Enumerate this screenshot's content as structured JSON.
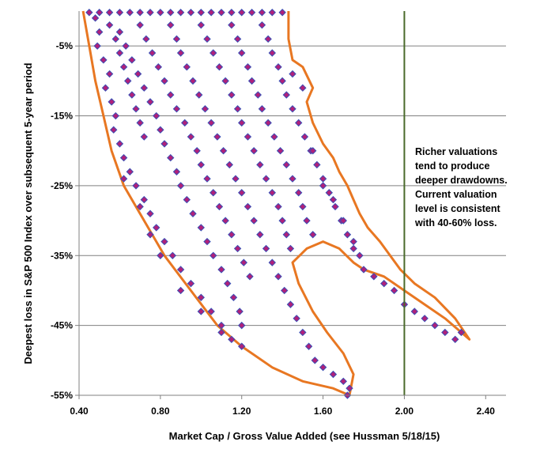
{
  "chart_data": {
    "type": "scatter",
    "xlabel": "Market Cap / Gross Value Added  (see Hussman 5/18/15)",
    "ylabel": "Deepest loss in S&P 500 Index over subsequent 5-year period",
    "xlim": [
      0.4,
      2.5
    ],
    "ylim": [
      -55,
      0
    ],
    "x_ticks": [
      "0.40",
      "0.80",
      "1.20",
      "1.60",
      "2.00",
      "2.40"
    ],
    "x_tick_values": [
      0.4,
      0.8,
      1.2,
      1.6,
      2.0,
      2.4
    ],
    "y_ticks": [
      "-5%",
      "-15%",
      "-25%",
      "-35%",
      "-45%",
      "-55%"
    ],
    "y_tick_values": [
      -5,
      -15,
      -25,
      -35,
      -45,
      -55
    ],
    "grid": "horizontal",
    "current_valuation_line": 2.0,
    "annotation": [
      "Richer valuations",
      "tend to produce",
      "deeper drawdowns.",
      "Current valuation",
      "level is consistent",
      "with 40-60% loss."
    ],
    "colors": {
      "marker_fill": "#b0207a",
      "marker_edge": "#3a4fb5",
      "envelope": "#e87722",
      "current_line": "#4a6a2a",
      "grid": "#808080"
    },
    "marker_shape": "diamond",
    "series": [
      {
        "values": [
          [
            0.45,
            -0.2
          ],
          [
            0.48,
            -1
          ],
          [
            0.5,
            -3
          ],
          [
            0.49,
            -5
          ],
          [
            0.52,
            -7
          ],
          [
            0.55,
            -9
          ],
          [
            0.53,
            -11
          ],
          [
            0.56,
            -13
          ],
          [
            0.58,
            -15
          ],
          [
            0.57,
            -17
          ],
          [
            0.6,
            -19
          ],
          [
            0.62,
            -21
          ],
          [
            0.65,
            -23
          ],
          [
            0.68,
            -25
          ],
          [
            0.72,
            -27
          ],
          [
            0.75,
            -29
          ],
          [
            0.78,
            -31
          ],
          [
            0.82,
            -33
          ],
          [
            0.86,
            -35
          ],
          [
            0.9,
            -37
          ],
          [
            0.95,
            -39
          ],
          [
            1.0,
            -41
          ],
          [
            1.05,
            -43
          ],
          [
            1.1,
            -45
          ],
          [
            1.15,
            -47
          ],
          [
            0.5,
            -0.2
          ],
          [
            0.55,
            -0.2
          ],
          [
            0.6,
            -0.2
          ],
          [
            0.65,
            -0.2
          ],
          [
            0.7,
            -0.2
          ],
          [
            0.75,
            -0.2
          ],
          [
            0.8,
            -0.2
          ],
          [
            0.85,
            -0.2
          ],
          [
            0.9,
            -0.2
          ],
          [
            0.95,
            -0.2
          ],
          [
            1.0,
            -0.2
          ],
          [
            1.05,
            -0.2
          ],
          [
            1.1,
            -0.2
          ],
          [
            1.15,
            -0.2
          ],
          [
            1.2,
            -0.2
          ],
          [
            1.25,
            -0.2
          ],
          [
            1.3,
            -0.2
          ],
          [
            1.35,
            -0.2
          ],
          [
            1.4,
            -0.2
          ],
          [
            0.55,
            -2
          ],
          [
            0.58,
            -4
          ],
          [
            0.6,
            -6
          ],
          [
            0.62,
            -8
          ],
          [
            0.64,
            -10
          ],
          [
            0.66,
            -12
          ],
          [
            0.68,
            -14
          ],
          [
            0.7,
            -16
          ],
          [
            0.72,
            -18
          ],
          [
            0.6,
            -3
          ],
          [
            0.63,
            -5
          ],
          [
            0.66,
            -7
          ],
          [
            0.69,
            -9
          ],
          [
            0.72,
            -11
          ],
          [
            0.75,
            -13
          ],
          [
            0.78,
            -15
          ],
          [
            0.8,
            -17
          ],
          [
            0.82,
            -19
          ],
          [
            0.85,
            -21
          ],
          [
            0.88,
            -23
          ],
          [
            0.9,
            -25
          ],
          [
            0.93,
            -27
          ],
          [
            0.96,
            -29
          ],
          [
            1.0,
            -31
          ],
          [
            1.03,
            -33
          ],
          [
            1.06,
            -35
          ],
          [
            1.1,
            -37
          ],
          [
            1.13,
            -39
          ],
          [
            1.16,
            -41
          ],
          [
            1.19,
            -43
          ],
          [
            1.2,
            -45
          ],
          [
            0.7,
            -2
          ],
          [
            0.73,
            -4
          ],
          [
            0.76,
            -6
          ],
          [
            0.79,
            -8
          ],
          [
            0.82,
            -10
          ],
          [
            0.85,
            -12
          ],
          [
            0.88,
            -14
          ],
          [
            0.92,
            -16
          ],
          [
            0.95,
            -18
          ],
          [
            0.98,
            -20
          ],
          [
            1.0,
            -22
          ],
          [
            1.03,
            -24
          ],
          [
            1.06,
            -26
          ],
          [
            1.09,
            -28
          ],
          [
            1.12,
            -30
          ],
          [
            1.15,
            -32
          ],
          [
            1.18,
            -34
          ],
          [
            1.21,
            -36
          ],
          [
            1.24,
            -38
          ],
          [
            0.85,
            -2
          ],
          [
            0.88,
            -4
          ],
          [
            0.9,
            -6
          ],
          [
            0.93,
            -8
          ],
          [
            0.96,
            -10
          ],
          [
            0.99,
            -12
          ],
          [
            1.02,
            -14
          ],
          [
            1.05,
            -16
          ],
          [
            1.08,
            -18
          ],
          [
            1.11,
            -20
          ],
          [
            1.14,
            -22
          ],
          [
            1.17,
            -24
          ],
          [
            1.2,
            -26
          ],
          [
            1.23,
            -28
          ],
          [
            1.26,
            -30
          ],
          [
            1.29,
            -32
          ],
          [
            1.32,
            -34
          ],
          [
            1.35,
            -36
          ],
          [
            1.38,
            -38
          ],
          [
            1.41,
            -40
          ],
          [
            1.44,
            -42
          ],
          [
            1.47,
            -44
          ],
          [
            1.5,
            -46
          ],
          [
            1.53,
            -48
          ],
          [
            1.56,
            -50
          ],
          [
            1.6,
            -51
          ],
          [
            1.65,
            -52
          ],
          [
            1.7,
            -53
          ],
          [
            1.73,
            -54
          ],
          [
            1.72,
            -55
          ],
          [
            1.0,
            -2
          ],
          [
            1.03,
            -4
          ],
          [
            1.06,
            -6
          ],
          [
            1.09,
            -8
          ],
          [
            1.12,
            -10
          ],
          [
            1.15,
            -12
          ],
          [
            1.18,
            -14
          ],
          [
            1.2,
            -16
          ],
          [
            1.23,
            -18
          ],
          [
            1.26,
            -20
          ],
          [
            1.29,
            -22
          ],
          [
            1.32,
            -24
          ],
          [
            1.35,
            -26
          ],
          [
            1.38,
            -28
          ],
          [
            1.4,
            -30
          ],
          [
            1.42,
            -32
          ],
          [
            1.44,
            -34
          ],
          [
            1.15,
            -2
          ],
          [
            1.18,
            -4
          ],
          [
            1.2,
            -6
          ],
          [
            1.23,
            -8
          ],
          [
            1.25,
            -10
          ],
          [
            1.28,
            -12
          ],
          [
            1.3,
            -14
          ],
          [
            1.33,
            -16
          ],
          [
            1.36,
            -18
          ],
          [
            1.39,
            -20
          ],
          [
            1.42,
            -22
          ],
          [
            1.45,
            -24
          ],
          [
            1.48,
            -26
          ],
          [
            1.5,
            -28
          ],
          [
            1.52,
            -30
          ],
          [
            1.55,
            -32
          ],
          [
            1.3,
            -2
          ],
          [
            1.33,
            -4
          ],
          [
            1.35,
            -6
          ],
          [
            1.38,
            -8
          ],
          [
            1.4,
            -10
          ],
          [
            1.42,
            -12
          ],
          [
            1.45,
            -14
          ],
          [
            1.48,
            -16
          ],
          [
            1.51,
            -18
          ],
          [
            1.54,
            -20
          ],
          [
            1.57,
            -22
          ],
          [
            1.6,
            -24
          ],
          [
            1.63,
            -26
          ],
          [
            1.66,
            -28
          ],
          [
            1.69,
            -30
          ],
          [
            1.72,
            -32
          ],
          [
            1.75,
            -34
          ],
          [
            1.45,
            -9
          ],
          [
            1.5,
            -11
          ],
          [
            1.55,
            -20
          ],
          [
            1.6,
            -25
          ],
          [
            1.65,
            -27
          ],
          [
            1.7,
            -30
          ],
          [
            1.75,
            -33
          ],
          [
            1.78,
            -35
          ],
          [
            1.8,
            -37
          ],
          [
            1.85,
            -38
          ],
          [
            1.9,
            -39
          ],
          [
            1.95,
            -40
          ],
          [
            2.0,
            -42
          ],
          [
            2.05,
            -43
          ],
          [
            2.1,
            -44
          ],
          [
            2.15,
            -45
          ],
          [
            2.2,
            -46
          ],
          [
            2.25,
            -47
          ],
          [
            2.28,
            -46
          ],
          [
            0.62,
            -24
          ],
          [
            0.7,
            -28
          ],
          [
            0.75,
            -32
          ],
          [
            0.8,
            -35
          ],
          [
            0.9,
            -40
          ],
          [
            1.0,
            -43
          ],
          [
            1.1,
            -46
          ],
          [
            1.2,
            -48
          ]
        ]
      }
    ],
    "envelope": [
      [
        0.42,
        0
      ],
      [
        0.45,
        -5
      ],
      [
        0.48,
        -10
      ],
      [
        0.52,
        -15
      ],
      [
        0.56,
        -20
      ],
      [
        0.62,
        -25
      ],
      [
        0.72,
        -30
      ],
      [
        0.82,
        -35
      ],
      [
        0.95,
        -40
      ],
      [
        1.08,
        -45
      ],
      [
        1.2,
        -48
      ],
      [
        1.35,
        -51
      ],
      [
        1.5,
        -53
      ],
      [
        1.65,
        -54
      ],
      [
        1.73,
        -55
      ],
      [
        1.75,
        -52
      ],
      [
        1.7,
        -49
      ],
      [
        1.62,
        -46
      ],
      [
        1.55,
        -43
      ],
      [
        1.48,
        -39
      ],
      [
        1.45,
        -36
      ],
      [
        1.52,
        -34
      ],
      [
        1.6,
        -33
      ],
      [
        1.68,
        -34
      ],
      [
        1.75,
        -36
      ],
      [
        1.8,
        -37
      ],
      [
        1.9,
        -38
      ],
      [
        2.0,
        -40
      ],
      [
        2.1,
        -42
      ],
      [
        2.2,
        -44
      ],
      [
        2.32,
        -47
      ],
      [
        2.25,
        -44
      ],
      [
        2.15,
        -41
      ],
      [
        2.05,
        -39
      ],
      [
        1.98,
        -37
      ],
      [
        1.88,
        -33
      ],
      [
        1.82,
        -31
      ],
      [
        1.78,
        -29
      ],
      [
        1.75,
        -27
      ],
      [
        1.72,
        -25
      ],
      [
        1.68,
        -23
      ],
      [
        1.65,
        -21
      ],
      [
        1.6,
        -19
      ],
      [
        1.55,
        -16
      ],
      [
        1.52,
        -13
      ],
      [
        1.55,
        -11
      ],
      [
        1.5,
        -8
      ],
      [
        1.45,
        -7
      ],
      [
        1.43,
        -4
      ],
      [
        1.43,
        0
      ]
    ]
  }
}
